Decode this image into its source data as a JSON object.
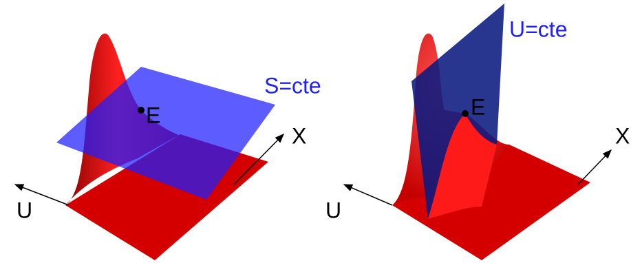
{
  "panels": [
    {
      "plane_label": "S=cte",
      "point_label": "E",
      "x_axis": "X",
      "u_axis": "U"
    },
    {
      "plane_label": "U=cte",
      "point_label": "E",
      "x_axis": "X",
      "u_axis": "U"
    }
  ]
}
